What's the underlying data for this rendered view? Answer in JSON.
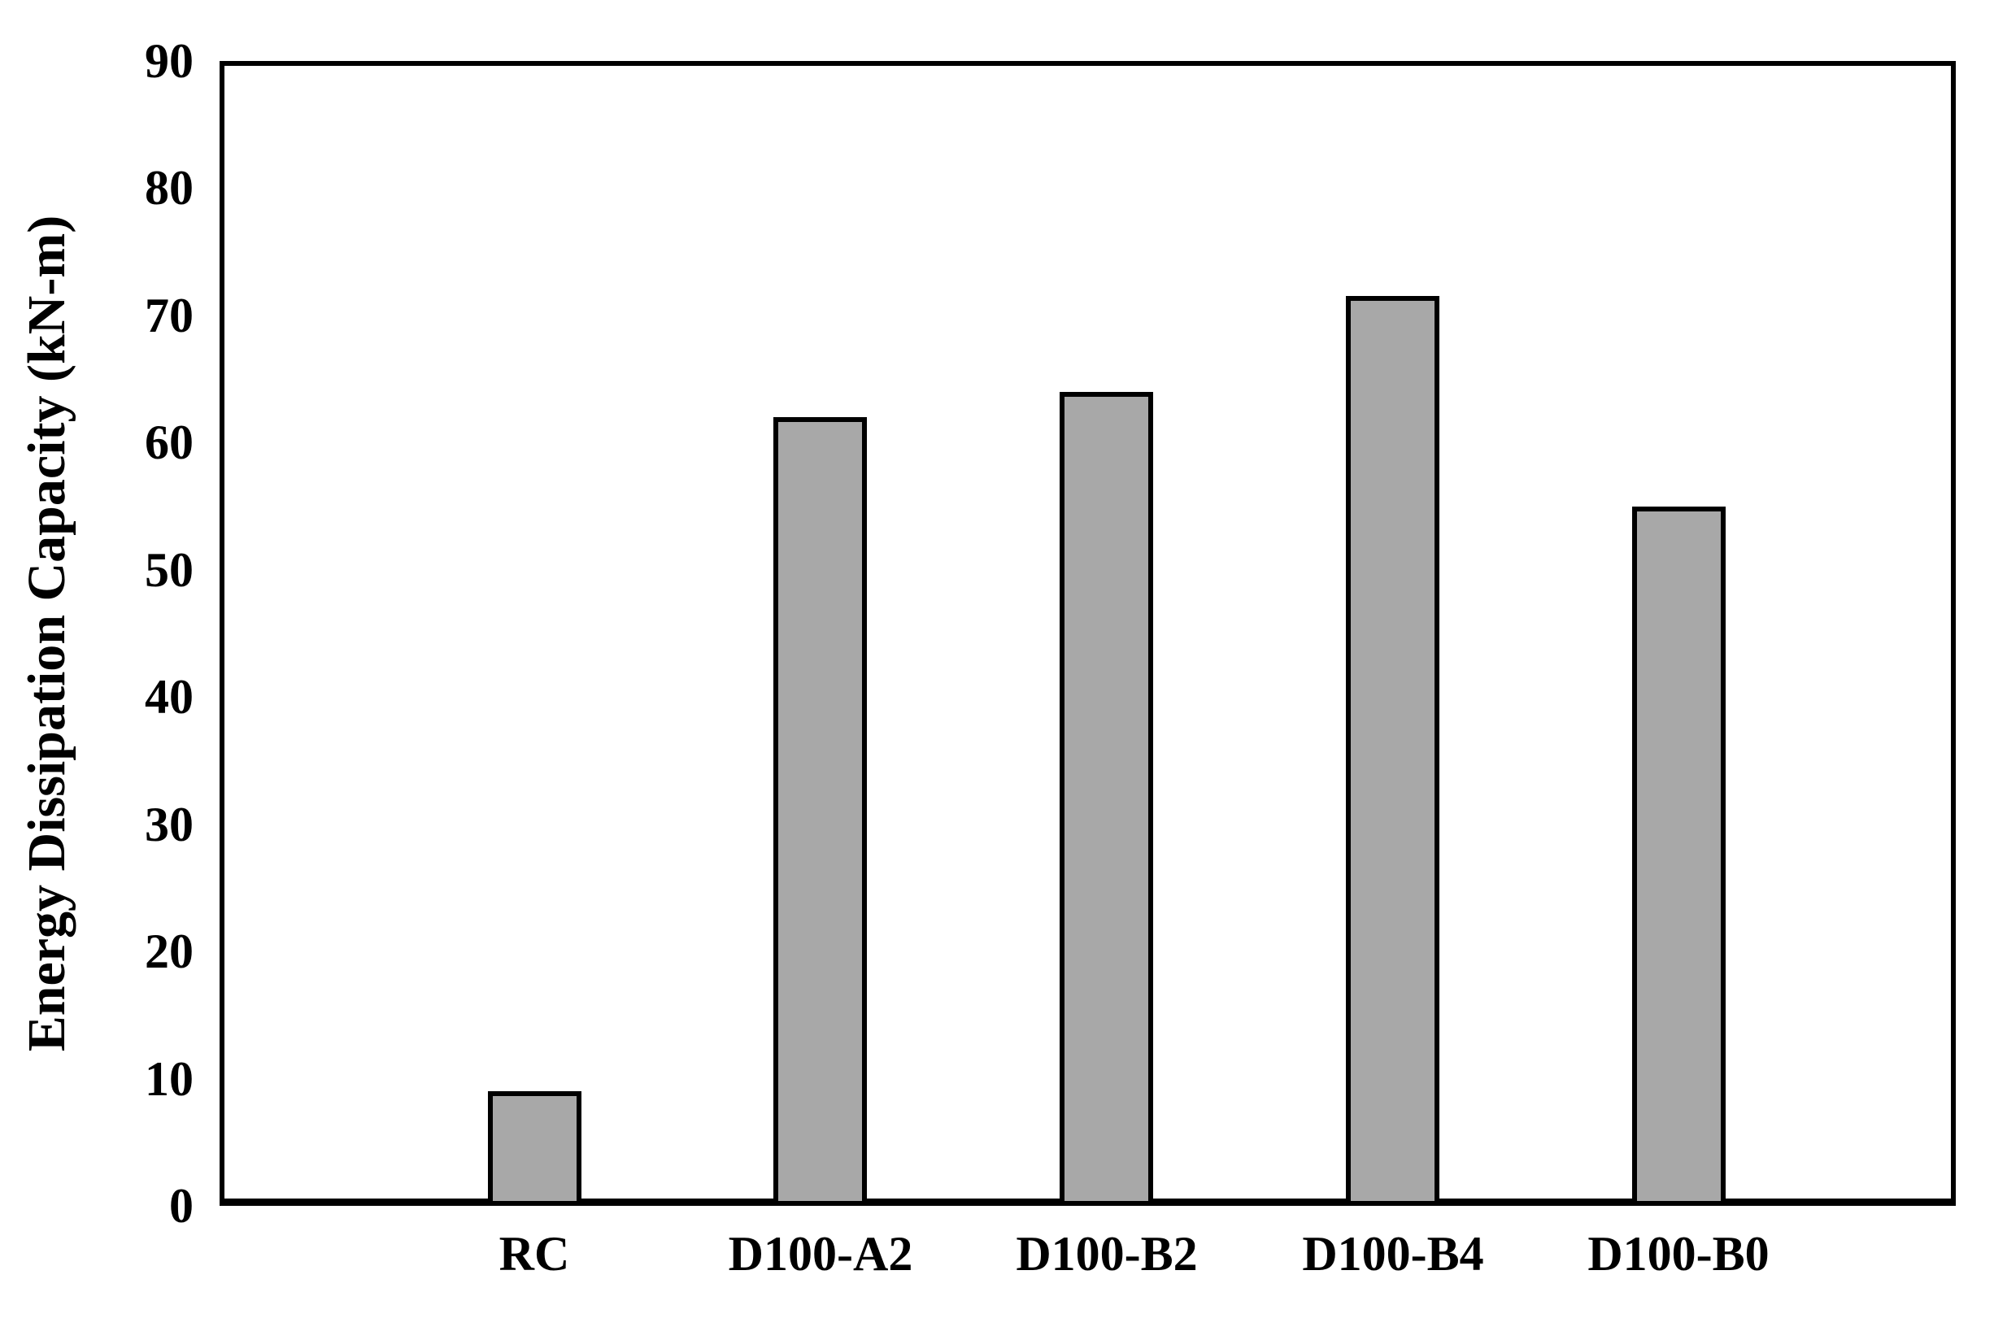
{
  "figure": {
    "background": "#ffffff"
  },
  "chart_data": {
    "type": "bar",
    "categories": [
      "RC",
      "D100-A2",
      "D100-B2",
      "D100-B4",
      "D100-B0"
    ],
    "values": [
      9,
      62,
      64,
      71.5,
      55
    ],
    "title": "",
    "xlabel": "",
    "ylabel": "Energy Dissipation Capacity (kN-m)",
    "ylim": [
      0,
      90
    ],
    "ytick_step": 10,
    "ytick_labels": [
      "0",
      "10",
      "20",
      "30",
      "40",
      "50",
      "60",
      "70",
      "80",
      "90"
    ],
    "grid": false,
    "legend": false,
    "bar_fill": "#a8a8a8",
    "bar_border": "#000000",
    "axis_color": "#000000"
  }
}
